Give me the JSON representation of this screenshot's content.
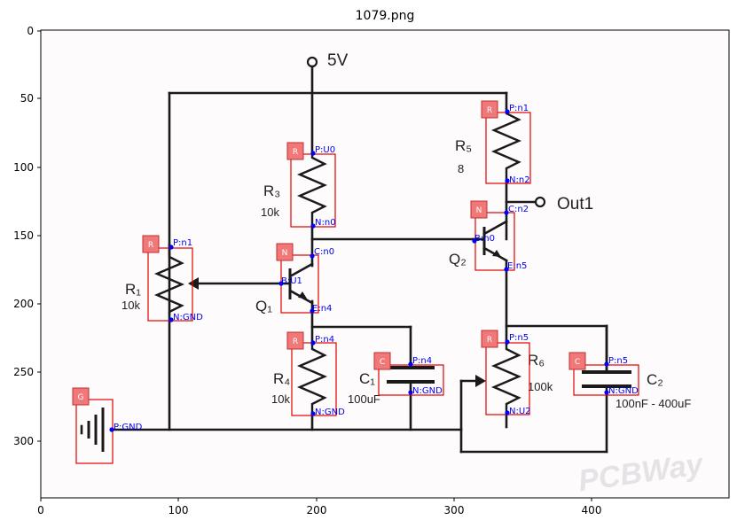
{
  "figure": {
    "title": "1079.png",
    "x_ticks": [
      "0",
      "100",
      "200",
      "300",
      "400"
    ],
    "y_ticks": [
      "0",
      "50",
      "100",
      "150",
      "200",
      "250",
      "300"
    ]
  },
  "circuit": {
    "supply_label": "5V",
    "output_label": "Out1",
    "components": {
      "R1": {
        "name": "R₁",
        "value": "10k"
      },
      "R3": {
        "name": "R₃",
        "value": "10k"
      },
      "R4": {
        "name": "R₄",
        "value": "10k"
      },
      "R5": {
        "name": "R₅",
        "value": "8"
      },
      "R6": {
        "name": "R₆",
        "value": "100k"
      },
      "C1": {
        "name": "C₁",
        "value": "100uF"
      },
      "C2": {
        "name": "C₂",
        "value": "100nF - 400uF"
      },
      "Q1": {
        "name": "Q₁"
      },
      "Q2": {
        "name": "Q₂"
      }
    },
    "watermark": "PCBWay"
  },
  "annotations": {
    "badges": {
      "R1": "R",
      "R3": "R",
      "R4": "R",
      "R5": "R",
      "R6": "R",
      "C1": "C",
      "C2": "C",
      "Q1": "N",
      "Q2": "N",
      "G1": "G"
    },
    "pins": {
      "r1_p": "P:n1",
      "r1_n": "N:GND",
      "r3_p": "P:U0",
      "r3_n": "N:n0",
      "r4_p": "P:n4",
      "r4_n": "N:GND",
      "r5_p": "P:n1",
      "r5_n": "N:n2",
      "r6_p": "P:n5",
      "r6_n": "N:U2",
      "c1_p": "P:n4",
      "c1_n": "N:GND",
      "c2_p": "P:n5",
      "c2_n": "N:GND",
      "q1_c": "C:n0",
      "q1_b": "B:U1",
      "q1_e": "E:n4",
      "q2_c": "C:n2",
      "q2_b": "B:n0",
      "q2_e": "E:n5",
      "g_p": "P:GND"
    }
  }
}
